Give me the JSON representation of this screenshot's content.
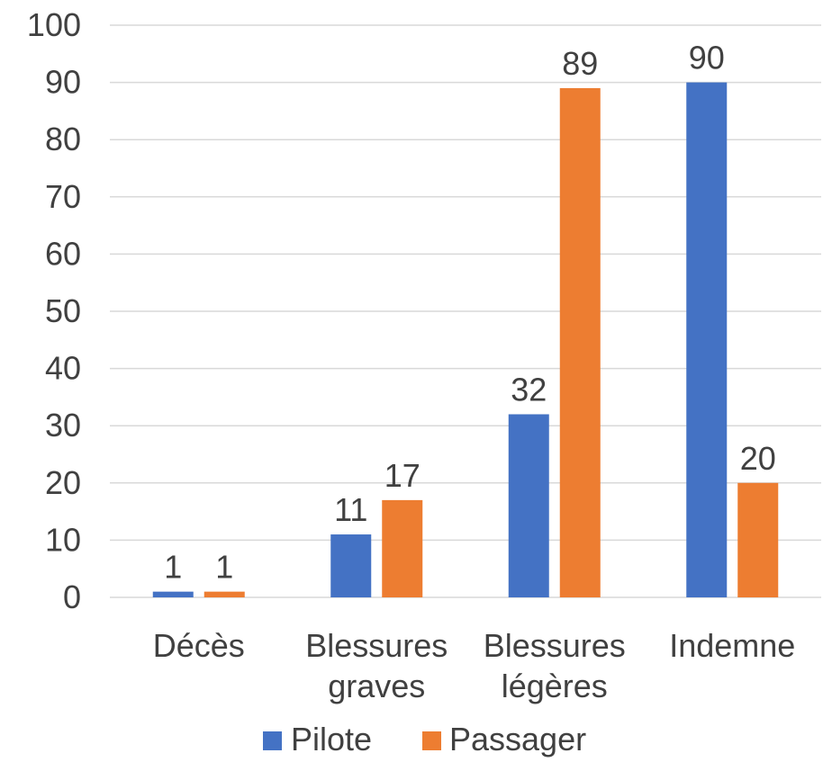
{
  "chart_data": {
    "type": "bar",
    "categories": [
      [
        "Décès"
      ],
      [
        "Blessures",
        "graves"
      ],
      [
        "Blessures",
        "légères"
      ],
      [
        "Indemne"
      ]
    ],
    "series": [
      {
        "name": "Pilote",
        "values": [
          1,
          11,
          32,
          90
        ],
        "color": "#4472c4"
      },
      {
        "name": "Passager",
        "values": [
          1,
          17,
          89,
          20
        ],
        "color": "#ed7d31"
      }
    ],
    "ylim": [
      0,
      100
    ],
    "yticks": [
      0,
      10,
      20,
      30,
      40,
      50,
      60,
      70,
      80,
      90,
      100
    ],
    "grid": true,
    "legend_position": "bottom",
    "data_labels": true
  }
}
